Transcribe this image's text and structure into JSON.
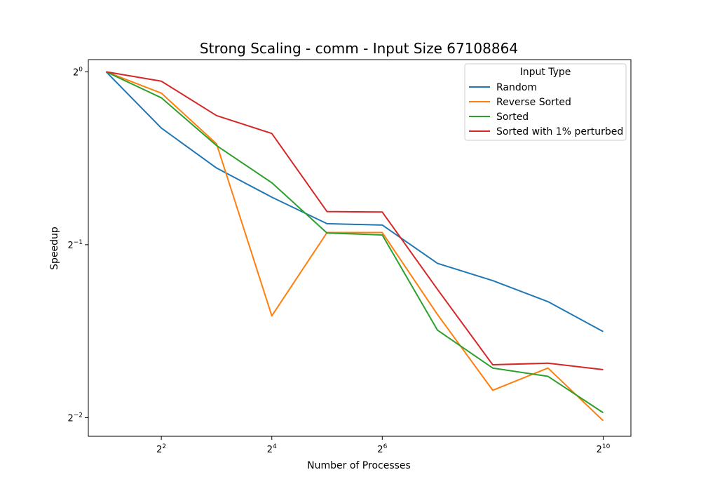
{
  "chart_data": {
    "type": "line",
    "title": "Strong Scaling - comm - Input Size 67108864",
    "xlabel": "Number of Processes",
    "ylabel": "Speedup",
    "x_scale": "log2",
    "y_scale": "log2",
    "x": [
      2,
      4,
      8,
      16,
      32,
      64,
      128,
      256,
      512,
      1024
    ],
    "xlim": [
      1.6,
      1450
    ],
    "ylim": [
      0.232,
      1.05
    ],
    "x_ticks": [
      {
        "value": 4,
        "base": "2",
        "exp": "2"
      },
      {
        "value": 16,
        "base": "2",
        "exp": "4"
      },
      {
        "value": 64,
        "base": "2",
        "exp": "6"
      },
      {
        "value": 1024,
        "base": "2",
        "exp": "10"
      }
    ],
    "y_ticks": [
      {
        "value": 1,
        "base": "2",
        "exp": "0"
      },
      {
        "value": 0.5,
        "base": "2",
        "exp": "−1"
      },
      {
        "value": 0.25,
        "base": "2",
        "exp": "−2"
      }
    ],
    "legend": {
      "title": "Input Type",
      "position": "top-right"
    },
    "grid": false,
    "series": [
      {
        "name": "Random",
        "color": "#1f77b4",
        "values": [
          1.0,
          0.798,
          0.68,
          0.605,
          0.544,
          0.541,
          0.464,
          0.433,
          0.398,
          0.353
        ]
      },
      {
        "name": "Reverse Sorted",
        "color": "#ff7f0e",
        "values": [
          1.0,
          0.918,
          0.749,
          0.376,
          0.525,
          0.525,
          0.378,
          0.279,
          0.305,
          0.247
        ]
      },
      {
        "name": "Sorted",
        "color": "#2ca02c",
        "values": [
          1.0,
          0.901,
          0.744,
          0.641,
          0.524,
          0.52,
          0.355,
          0.305,
          0.295,
          0.255
        ]
      },
      {
        "name": "Sorted with 1% perturbed",
        "color": "#d62728",
        "values": [
          1.0,
          0.963,
          0.839,
          0.781,
          0.571,
          0.57,
          0.418,
          0.309,
          0.311,
          0.303
        ]
      }
    ]
  }
}
